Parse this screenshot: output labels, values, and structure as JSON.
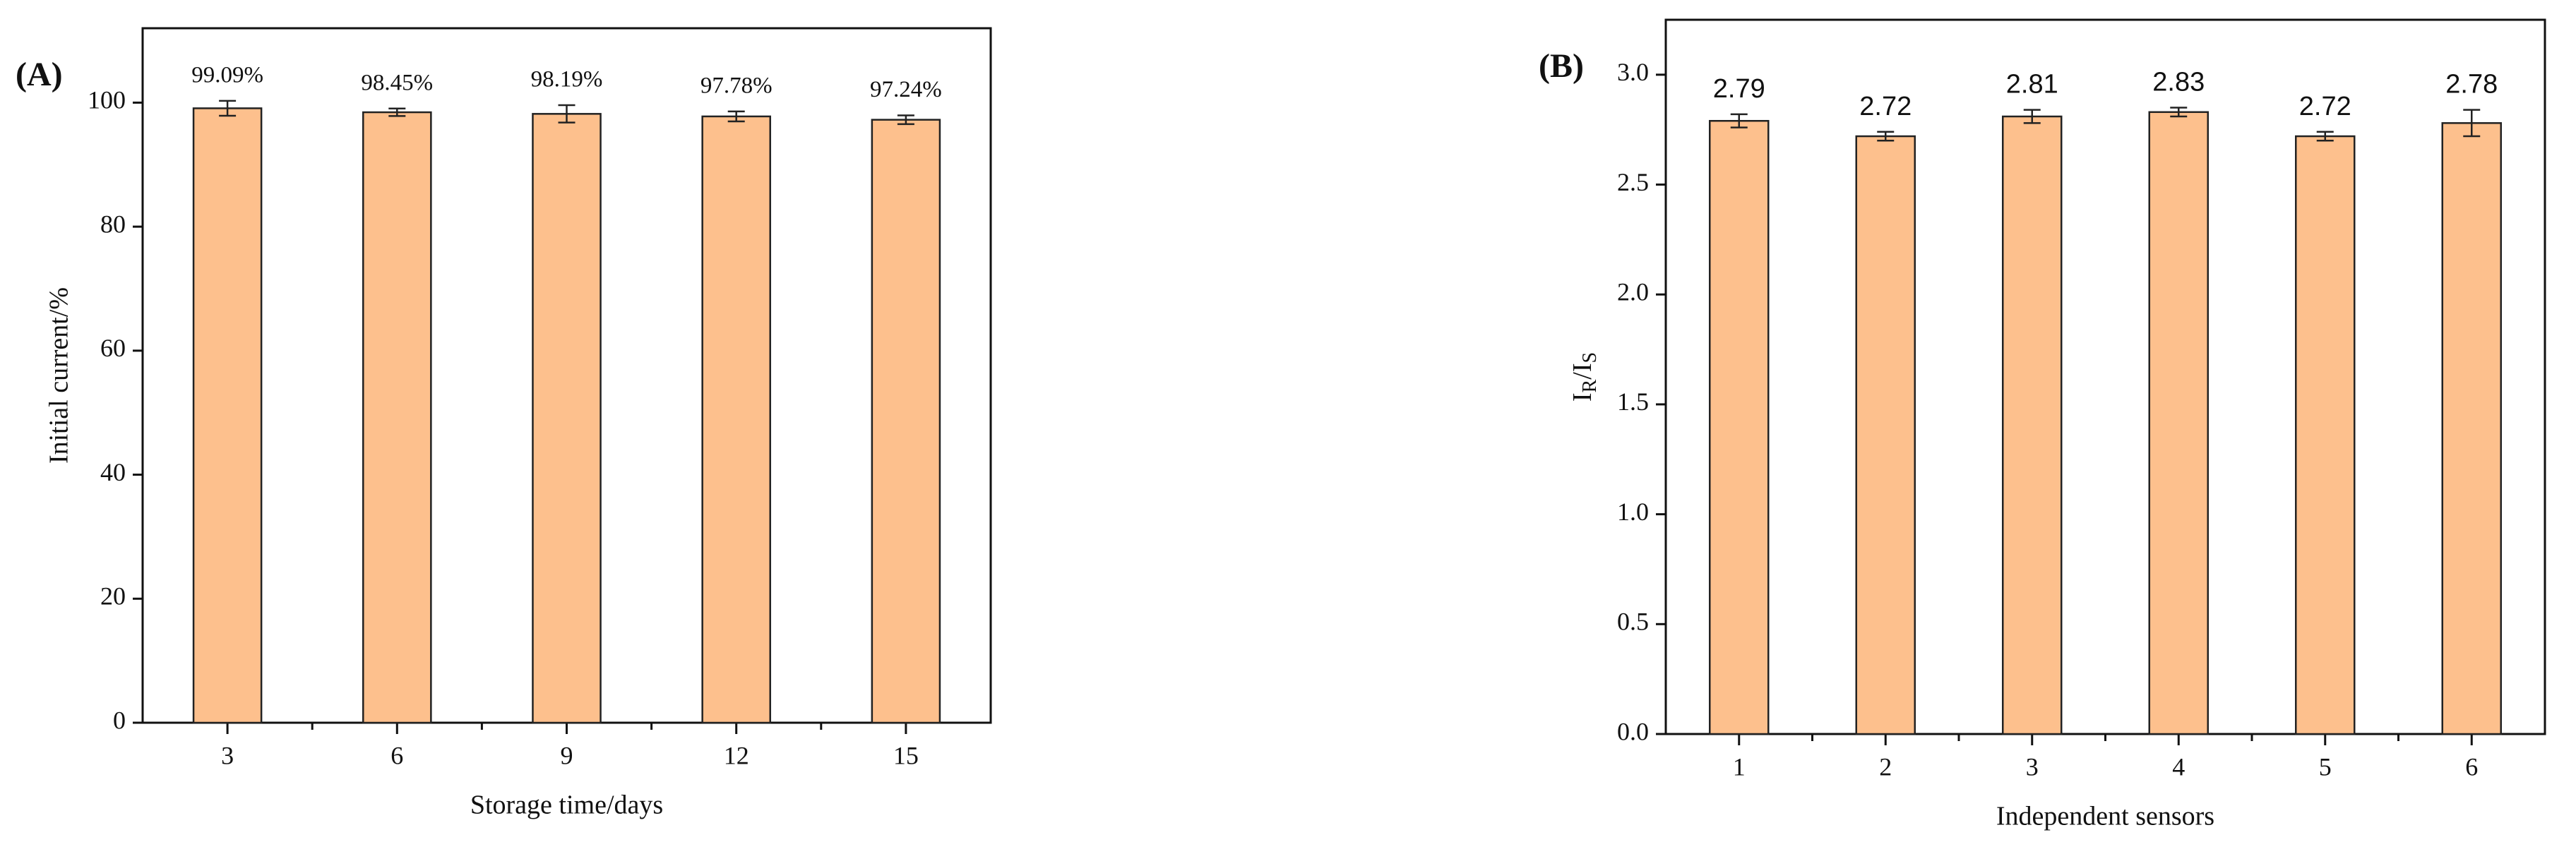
{
  "chart_data": [
    {
      "type": "bar",
      "panel_label": "(A)",
      "x_label": "Storage time/days",
      "y_label": "Initial current/%",
      "categories": [
        "3",
        "6",
        "9",
        "12",
        "15"
      ],
      "values": [
        99.09,
        98.45,
        98.19,
        97.78,
        97.24
      ],
      "value_labels": [
        "99.09%",
        "98.45%",
        "98.19%",
        "97.78%",
        "97.24%"
      ],
      "errors": [
        1.2,
        0.6,
        1.4,
        0.8,
        0.7
      ],
      "color": "#fdc08d",
      "ylim": [
        0,
        112
      ],
      "yticks": [
        0,
        20,
        40,
        60,
        80,
        100
      ]
    },
    {
      "type": "bar",
      "panel_label": "(B)",
      "x_label": "Independent sensors",
      "y_label": [
        "I",
        "R",
        "/I",
        "S"
      ],
      "categories": [
        "1",
        "2",
        "3",
        "4",
        "5",
        "6"
      ],
      "values": [
        2.79,
        2.72,
        2.81,
        2.83,
        2.72,
        2.78
      ],
      "errors": [
        0.03,
        0.02,
        0.03,
        0.02,
        0.02,
        0.06
      ],
      "color": "#fdc08d",
      "ylim": [
        0,
        3.25
      ],
      "yticks": [
        {
          "value": 0,
          "label": "0.0"
        },
        0.5,
        {
          "value": 1,
          "label": "1.0"
        },
        1.5,
        {
          "value": 2,
          "label": "2.0"
        },
        2.5,
        {
          "value": 3,
          "label": "3.0"
        }
      ]
    }
  ]
}
